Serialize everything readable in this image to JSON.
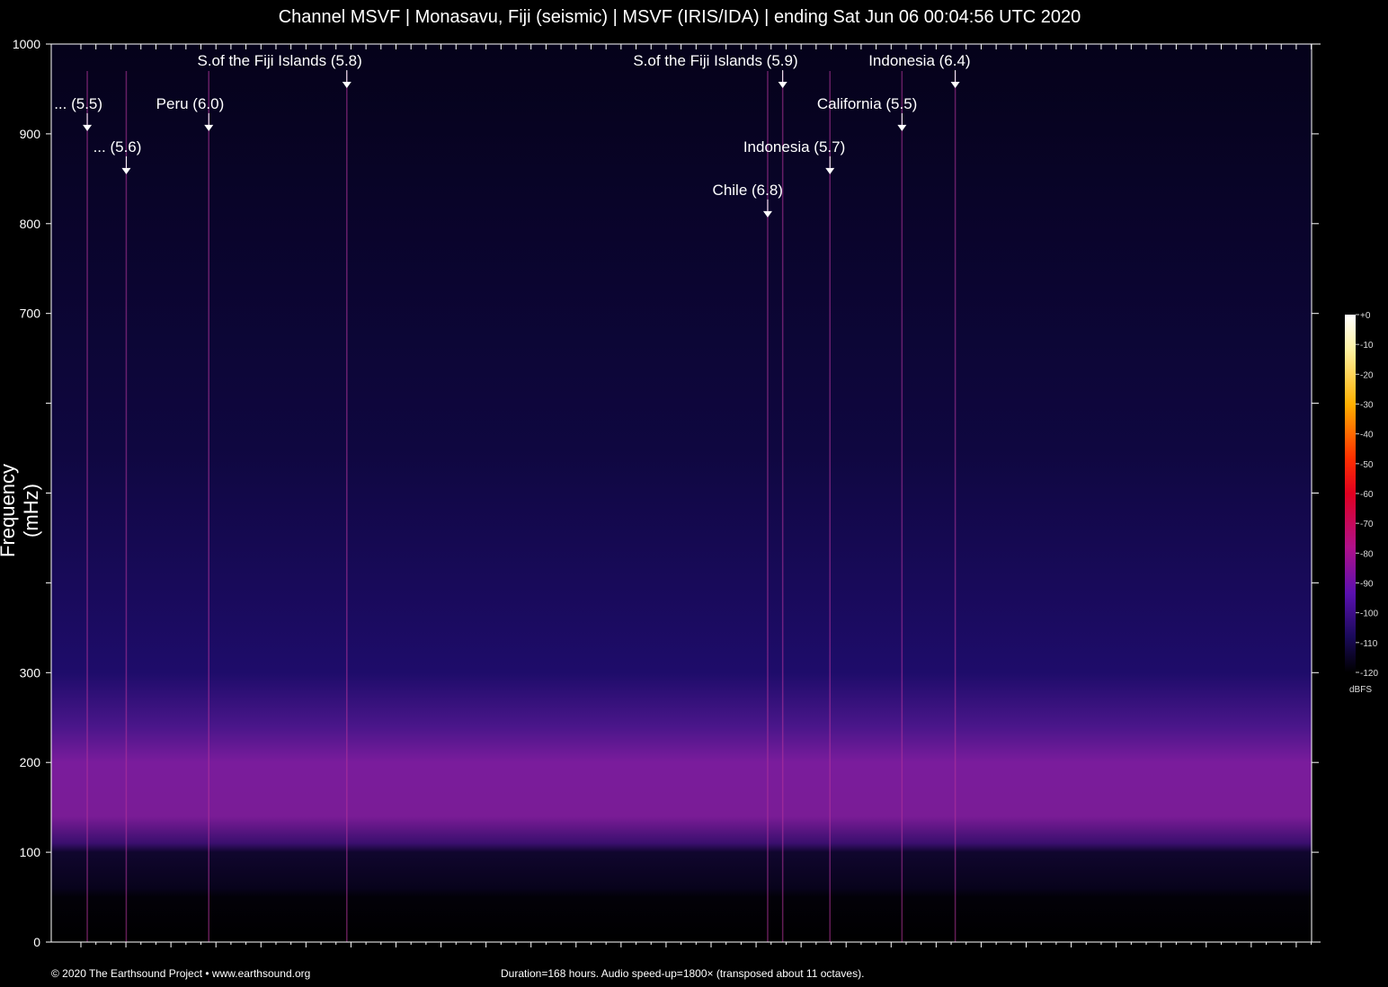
{
  "title": "Channel MSVF | Monasavu, Fiji (seismic) | MSVF (IRIS/IDA) | ending Sat Jun 06 00:04:56 UTC 2020",
  "footer": {
    "copyright": "© 2020 The Earthsound Project • www.earthsound.org",
    "info": "Duration=168 hours. Audio speed-up=1800× (transposed about 11 octaves)."
  },
  "colors": {
    "background": "#000000",
    "axis": "#ffffff",
    "noise_low": "#1a0a5a",
    "noise_band": "#7a1c9c",
    "event_line": "#c43aa8"
  },
  "chart_data": {
    "type": "heatmap",
    "title": "Channel MSVF | Monasavu, Fiji (seismic) | MSVF (IRIS/IDA) | ending Sat Jun 06 00:04:56 UTC 2020",
    "ylabel": "Frequency (mHz)",
    "xlabel": "",
    "ylim": [
      0,
      1000
    ],
    "xlim_hours": [
      0,
      168
    ],
    "y_ticks": [
      0,
      100,
      200,
      300,
      400,
      500,
      600,
      700,
      800,
      900,
      1000
    ],
    "y_tick_labels": [
      "0",
      "100",
      "200",
      "300",
      "",
      "",
      "",
      "700",
      "800",
      "900",
      "1000"
    ],
    "grid": false,
    "events": [
      {
        "label": "... (5.5)",
        "hour": 4.8,
        "label_freq": 910
      },
      {
        "label": "... (5.6)",
        "hour": 10.0,
        "label_freq": 862
      },
      {
        "label": "Peru (6.0)",
        "hour": 21.0,
        "label_freq": 910
      },
      {
        "label": "S.of the Fiji Islands (5.8)",
        "hour": 39.4,
        "label_freq": 958
      },
      {
        "label": "S.of the Fiji Islands (5.9)",
        "hour": 97.5,
        "label_freq": 958
      },
      {
        "label": "Chile (6.8)",
        "hour": 95.5,
        "label_freq": 814
      },
      {
        "label": "Indonesia (5.7)",
        "hour": 103.8,
        "label_freq": 862
      },
      {
        "label": "California (5.5)",
        "hour": 113.4,
        "label_freq": 910
      },
      {
        "label": "Indonesia (6.4)",
        "hour": 120.5,
        "label_freq": 958
      }
    ],
    "colorbar": {
      "unit": "dBFS",
      "ticks": [
        0,
        -10,
        -20,
        -30,
        -40,
        -50,
        -60,
        -70,
        -80,
        -90,
        -100,
        -110,
        -120
      ],
      "tick_labels": [
        "+0",
        "-10",
        "-20",
        "-30",
        "-40",
        "-50",
        "-60",
        "-70",
        "-80",
        "-90",
        "-100",
        "-110",
        "-120"
      ],
      "range": [
        -120,
        0
      ]
    }
  }
}
